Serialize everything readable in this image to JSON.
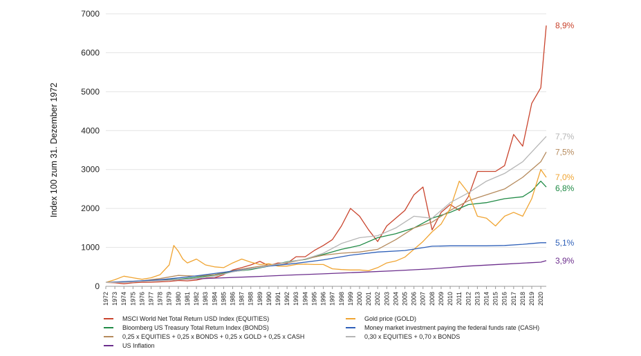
{
  "chart_data": {
    "type": "line",
    "title": "",
    "xlabel": "",
    "ylabel": "Index 100 zum 31. Dezember 1972",
    "ylim": [
      0,
      7000
    ],
    "yticks": [
      0,
      1000,
      2000,
      3000,
      4000,
      5000,
      6000,
      7000
    ],
    "xlim": [
      1972,
      2020.6
    ],
    "xticks": [
      "1972",
      "1973",
      "1974",
      "1975",
      "1976",
      "1977",
      "1978",
      "1979",
      "1980",
      "1981",
      "1982",
      "1983",
      "1984",
      "1985",
      "1986",
      "1987",
      "1988",
      "1989",
      "1990",
      "1991",
      "1992",
      "1993",
      "1994",
      "1995",
      "1996",
      "1997",
      "1998",
      "1999",
      "2000",
      "2001",
      "2002",
      "2003",
      "2004",
      "2005",
      "2006",
      "2007",
      "2008",
      "2009",
      "2010",
      "2011",
      "2012",
      "2013",
      "2014",
      "2015",
      "2016",
      "2017",
      "2018",
      "2019",
      "2020"
    ],
    "grid": "horizontal",
    "legend_position": "bottom",
    "series": [
      {
        "name": "MSCI World Net Total Return USD Index (EQUITIES)",
        "color": "#c9432c",
        "end_label": "8,9%",
        "x": [
          1972,
          1973,
          1974,
          1975,
          1976,
          1977,
          1978,
          1979,
          1980,
          1981,
          1982,
          1983,
          1984,
          1985,
          1986,
          1987,
          1988,
          1989,
          1990,
          1991,
          1992,
          1993,
          1994,
          1995,
          1996,
          1997,
          1998,
          1999,
          2000,
          2001,
          2002,
          2003,
          2004,
          2005,
          2006,
          2007,
          2008,
          2009,
          2010,
          2011,
          2012,
          2013,
          2014,
          2015,
          2016,
          2017,
          2018,
          2019,
          2020,
          2020.6
        ],
        "y": [
          100,
          90,
          65,
          90,
          105,
          105,
          115,
          125,
          150,
          140,
          160,
          210,
          220,
          300,
          420,
          480,
          550,
          640,
          530,
          600,
          590,
          760,
          760,
          920,
          1050,
          1200,
          1550,
          2000,
          1800,
          1450,
          1150,
          1550,
          1750,
          1950,
          2350,
          2550,
          1450,
          1900,
          2100,
          1950,
          2300,
          2950,
          2950,
          2950,
          3100,
          3900,
          3600,
          4700,
          5100,
          6700
        ]
      },
      {
        "name": "Bloomberg US Treasury Total Return Index (BONDS)",
        "color": "#1f8a45",
        "end_label": "6,8%",
        "x": [
          1972,
          1974,
          1976,
          1978,
          1980,
          1982,
          1984,
          1986,
          1988,
          1990,
          1992,
          1994,
          1996,
          1998,
          2000,
          2002,
          2004,
          2006,
          2008,
          2010,
          2012,
          2014,
          2016,
          2018,
          2019,
          2020,
          2020.6
        ],
        "y": [
          100,
          110,
          140,
          160,
          180,
          230,
          290,
          380,
          430,
          520,
          630,
          690,
          820,
          950,
          1050,
          1250,
          1350,
          1500,
          1750,
          1900,
          2100,
          2150,
          2250,
          2300,
          2450,
          2700,
          2550
        ]
      },
      {
        "name": "0,25 x EQUITIES + 0,25 x BONDS + 0,25 x GOLD + 0,25 x CASH",
        "color": "#b58a5c",
        "end_label": "7,5%",
        "x": [
          1972,
          1974,
          1976,
          1978,
          1980,
          1982,
          1984,
          1986,
          1988,
          1990,
          1992,
          1994,
          1996,
          1998,
          2000,
          2002,
          2004,
          2006,
          2008,
          2010,
          2012,
          2014,
          2016,
          2018,
          2020,
          2020.6
        ],
        "y": [
          100,
          120,
          140,
          200,
          280,
          260,
          300,
          400,
          480,
          550,
          600,
          700,
          800,
          850,
          880,
          950,
          1200,
          1500,
          1650,
          1950,
          2200,
          2350,
          2500,
          2800,
          3200,
          3450
        ]
      },
      {
        "name": "US Inflation",
        "color": "#6b2d8c",
        "end_label": "3,9%",
        "x": [
          1972,
          1976,
          1980,
          1984,
          1988,
          1992,
          1996,
          2000,
          2004,
          2008,
          2012,
          2016,
          2020,
          2020.6
        ],
        "y": [
          100,
          130,
          170,
          210,
          245,
          285,
          320,
          360,
          400,
          450,
          520,
          570,
          620,
          660
        ]
      },
      {
        "name": "Gold price (GOLD)",
        "color": "#f0a431",
        "end_label": "7,0%",
        "x": [
          1972,
          1973,
          1974,
          1975,
          1976,
          1977,
          1978,
          1979,
          1979.5,
          1980,
          1980.5,
          1981,
          1982,
          1983,
          1984,
          1985,
          1986,
          1987,
          1988,
          1989,
          1990,
          1991,
          1992,
          1993,
          1994,
          1995,
          1996,
          1997,
          1998,
          1999,
          2000,
          2001,
          2002,
          2003,
          2004,
          2005,
          2006,
          2007,
          2008,
          2009,
          2010,
          2011,
          2012,
          2013,
          2014,
          2015,
          2016,
          2017,
          2018,
          2019,
          2020,
          2020.6
        ],
        "y": [
          100,
          170,
          260,
          220,
          180,
          220,
          300,
          550,
          1050,
          900,
          700,
          600,
          700,
          550,
          500,
          480,
          600,
          700,
          620,
          560,
          580,
          520,
          520,
          560,
          570,
          560,
          560,
          450,
          430,
          420,
          420,
          400,
          480,
          600,
          650,
          750,
          950,
          1150,
          1400,
          1600,
          2000,
          2700,
          2400,
          1800,
          1750,
          1550,
          1800,
          1900,
          1800,
          2250,
          3000,
          2800
        ]
      },
      {
        "name": "Money market investment paying the federal funds rate (CASH)",
        "color": "#2d5fb8",
        "end_label": "5,1%",
        "x": [
          1972,
          1975,
          1978,
          1981,
          1984,
          1987,
          1990,
          1993,
          1996,
          1999,
          2002,
          2005,
          2008,
          2010,
          2012,
          2014,
          2016,
          2018,
          2020,
          2020.6
        ],
        "y": [
          100,
          130,
          170,
          240,
          330,
          420,
          520,
          590,
          680,
          800,
          880,
          920,
          1030,
          1040,
          1040,
          1040,
          1050,
          1080,
          1120,
          1120
        ]
      },
      {
        "name": "0,30 x EQUITIES + 0,70 x BONDS",
        "color": "#b5b5b5",
        "end_label": "7,7%",
        "x": [
          1972,
          1974,
          1976,
          1978,
          1980,
          1982,
          1984,
          1986,
          1988,
          1990,
          1992,
          1994,
          1996,
          1998,
          2000,
          2002,
          2004,
          2006,
          2008,
          2010,
          2012,
          2014,
          2016,
          2018,
          2020,
          2020.6
        ],
        "y": [
          100,
          100,
          125,
          145,
          170,
          200,
          260,
          370,
          450,
          530,
          620,
          700,
          850,
          1100,
          1250,
          1300,
          1500,
          1800,
          1750,
          2150,
          2400,
          2700,
          2900,
          3200,
          3700,
          3850
        ]
      }
    ],
    "legend_order": [
      0,
      4,
      1,
      5,
      2,
      6,
      3
    ]
  }
}
